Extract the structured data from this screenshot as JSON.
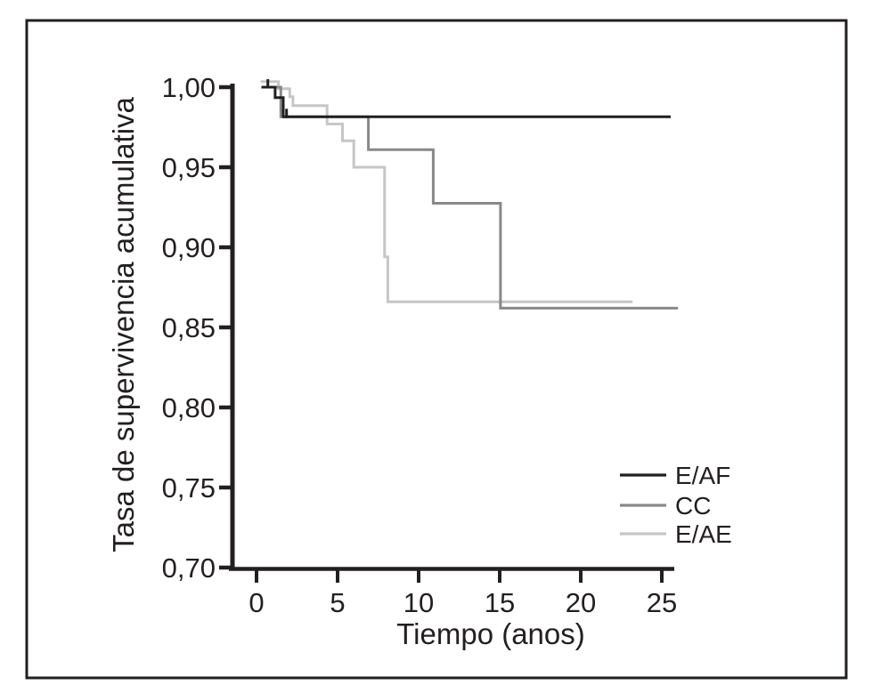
{
  "chart_data": {
    "type": "line",
    "subtype": "kaplan-meier-step-survival",
    "title": "",
    "xlabel": "Tiempo (anos)",
    "ylabel": "Tasa de supervivencia acumulativa",
    "xlim": [
      -1.6,
      26.5
    ],
    "ylim": [
      0.7,
      1.005
    ],
    "grid": false,
    "legend_position": "lower-right",
    "axis_color": "#231f20",
    "frame_color": "#231f20",
    "xtick_labels": [
      "0",
      "5",
      "10",
      "15",
      "20",
      "25"
    ],
    "xtick_values": [
      0,
      5,
      10,
      15,
      20,
      25
    ],
    "ytick_labels": [
      "1,00",
      "0,95",
      "0,90",
      "0,85",
      "0,80",
      "0,75",
      "0,70"
    ],
    "ytick_values": [
      1.0,
      0.95,
      0.9,
      0.85,
      0.8,
      0.75,
      0.7
    ],
    "series": [
      {
        "name": "E/AF",
        "color": "#231f20",
        "points": [
          [
            0.3,
            1.0
          ],
          [
            1.15,
            1.0
          ],
          [
            1.15,
            0.9935
          ],
          [
            1.65,
            0.9935
          ],
          [
            1.65,
            0.9815
          ],
          [
            25.55,
            0.9815
          ]
        ],
        "censor_marks": [
          [
            0.7,
            1.0
          ],
          [
            1.85,
            0.9815
          ]
        ]
      },
      {
        "name": "CC",
        "color": "#88898b",
        "points": [
          [
            0.3,
            1.0
          ],
          [
            1.5,
            1.0
          ],
          [
            1.5,
            0.9815
          ],
          [
            6.9,
            0.9815
          ],
          [
            6.9,
            0.961
          ],
          [
            10.9,
            0.961
          ],
          [
            10.9,
            0.9275
          ],
          [
            15.05,
            0.9275
          ],
          [
            15.05,
            0.862
          ],
          [
            26.0,
            0.862
          ]
        ],
        "censor_marks": []
      },
      {
        "name": "E/AE",
        "color": "#c5c6c8",
        "points": [
          [
            0.25,
            1.0035
          ],
          [
            1.35,
            1.0035
          ],
          [
            1.35,
            0.999
          ],
          [
            2.05,
            0.999
          ],
          [
            2.05,
            0.994
          ],
          [
            2.25,
            0.994
          ],
          [
            2.25,
            0.9885
          ],
          [
            4.35,
            0.9885
          ],
          [
            4.35,
            0.977
          ],
          [
            5.3,
            0.977
          ],
          [
            5.3,
            0.9665
          ],
          [
            6.0,
            0.9665
          ],
          [
            6.0,
            0.95
          ],
          [
            7.9,
            0.95
          ],
          [
            7.9,
            0.894
          ],
          [
            8.1,
            0.894
          ],
          [
            8.1,
            0.866
          ],
          [
            23.2,
            0.866
          ]
        ],
        "censor_marks": []
      }
    ]
  }
}
